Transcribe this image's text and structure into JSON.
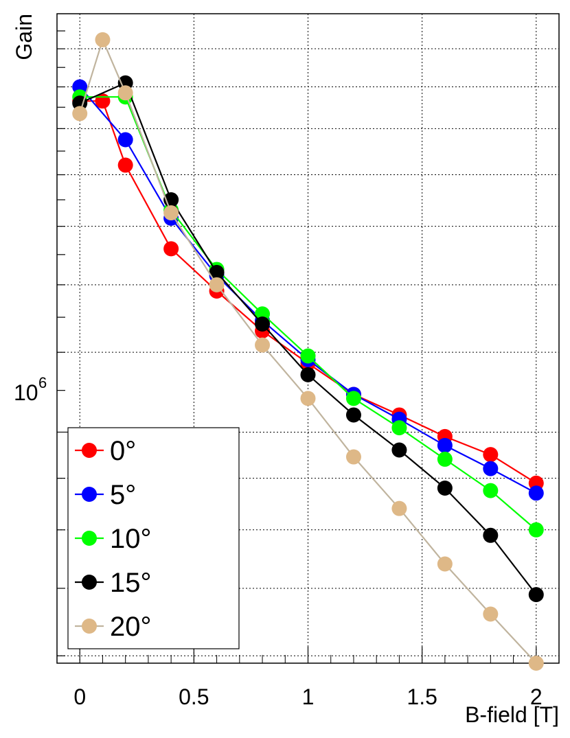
{
  "chart_data": {
    "type": "line",
    "xlabel": "B-field [T]",
    "ylabel": "Gain",
    "y_scale": "log",
    "xlim": [
      -0.1,
      2.1
    ],
    "ylim": [
      590000,
      2600000
    ],
    "grid": true,
    "legend_position": "bottom-left",
    "x_ticks": [
      0,
      0.5,
      1,
      1.5,
      2
    ],
    "x_tick_labels": [
      "0",
      "0.5",
      "1",
      "1.5",
      "2"
    ],
    "y_tick_label": {
      "base": "10",
      "exponent": "6",
      "value": 1000000
    },
    "series": [
      {
        "name": "0°",
        "color": "#ff0000",
        "x": [
          0,
          0.1,
          0.2,
          0.4,
          0.6,
          0.8,
          1.0,
          1.2,
          1.4,
          1.6,
          1.8,
          2.0
        ],
        "y": [
          2130000,
          2130000,
          1840000,
          1520000,
          1380000,
          1260000,
          1170000,
          1090000,
          1040000,
          990000,
          950000,
          890000
        ]
      },
      {
        "name": "5°",
        "color": "#0000ff",
        "x": [
          0,
          0.2,
          0.4,
          0.6,
          0.8,
          1.0,
          1.2,
          1.4,
          1.6,
          1.8,
          2.0
        ],
        "y": [
          2200000,
          1950000,
          1630000,
          1430000,
          1290000,
          1180000,
          1090000,
          1030000,
          970000,
          920000,
          870000
        ]
      },
      {
        "name": "10°",
        "color": "#00ff00",
        "x": [
          0,
          0.2,
          0.4,
          0.6,
          0.8,
          1.0,
          1.2,
          1.4,
          1.6,
          1.8,
          2.0
        ],
        "y": [
          2150000,
          2150000,
          1660000,
          1450000,
          1310000,
          1190000,
          1080000,
          1010000,
          940000,
          875000,
          800000
        ]
      },
      {
        "name": "15°",
        "color": "#000000",
        "x": [
          0,
          0.2,
          0.4,
          0.6,
          0.8,
          1.0,
          1.2,
          1.4,
          1.6,
          1.8,
          2.0
        ],
        "y": [
          2120000,
          2220000,
          1700000,
          1440000,
          1280000,
          1140000,
          1040000,
          960000,
          880000,
          790000,
          690000
        ]
      },
      {
        "name": "20°",
        "color": "#deb887",
        "x": [
          0,
          0.1,
          0.2,
          0.4,
          0.6,
          0.8,
          1.0,
          1.2,
          1.4,
          1.6,
          1.8,
          2.0
        ],
        "y": [
          2070000,
          2450000,
          2170000,
          1650000,
          1400000,
          1220000,
          1080000,
          945000,
          840000,
          740000,
          660000,
          590000
        ]
      }
    ]
  }
}
